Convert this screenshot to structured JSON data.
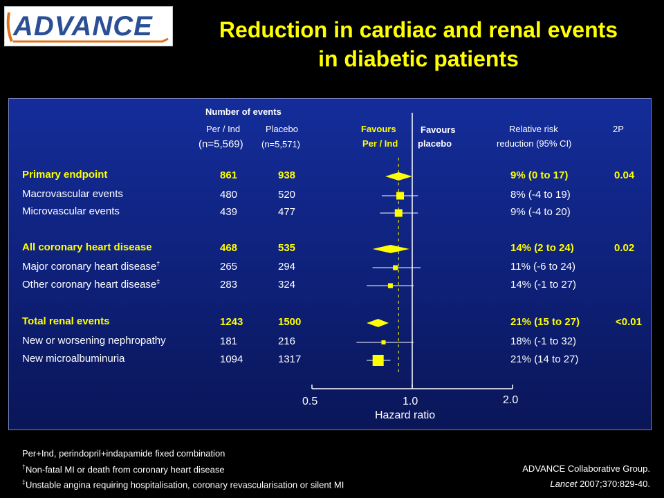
{
  "logo": {
    "text": "ADVANCE"
  },
  "title": {
    "line1": "Reduction in cardiac and renal events",
    "line2": "in diabetic patients"
  },
  "headers": {
    "number_of_events": "Number  of  events",
    "col_active": "Per / Ind",
    "col_placebo": "Placebo",
    "n_active": "(n=5,569)",
    "n_placebo": "(n=5,571)",
    "favours_active_1": "Favours",
    "favours_active_2": "Per / Ind",
    "favours_placebo_1": "Favours",
    "favours_placebo_2": "placebo",
    "rrr_1": "Relative risk",
    "rrr_2": "reduction (95%  CI)",
    "p_col": "2P"
  },
  "chart_data": {
    "type": "forest",
    "x_axis_label": "Hazard ratio",
    "x_scale": "log",
    "x_ticks": [
      0.5,
      1.0,
      2.0
    ],
    "x_tick_labels": [
      "0.5",
      "1.0",
      "2.0"
    ],
    "reference_line": 1.0,
    "rows": [
      {
        "label": "Primary endpoint",
        "sup": "",
        "active": "861",
        "placebo": "938",
        "hr": 0.91,
        "lo": 0.83,
        "hi": 1.0,
        "rrr": "9% (0 to 17)",
        "p": "0.04",
        "summary": true,
        "marker": "diamond"
      },
      {
        "label": "Macrovascular events",
        "sup": "",
        "active": "480",
        "placebo": "520",
        "hr": 0.92,
        "lo": 0.81,
        "hi": 1.04,
        "rrr": "8% (-4 to 19)",
        "p": "",
        "summary": false,
        "marker": "square"
      },
      {
        "label": "Microvascular events",
        "sup": "",
        "active": "439",
        "placebo": "477",
        "hr": 0.91,
        "lo": 0.8,
        "hi": 1.04,
        "rrr": "9% (-4 to 20)",
        "p": "",
        "summary": false,
        "marker": "square"
      },
      {
        "label": "All coronary heart disease",
        "sup": "",
        "active": "468",
        "placebo": "535",
        "hr": 0.86,
        "lo": 0.76,
        "hi": 0.98,
        "rrr": "14% (2 to 24)",
        "p": "0.02",
        "summary": true,
        "marker": "diamond"
      },
      {
        "label": "Major coronary heart disease",
        "sup": "†",
        "active": "265",
        "placebo": "294",
        "hr": 0.89,
        "lo": 0.76,
        "hi": 1.06,
        "rrr": "11% (-6 to 24)",
        "p": "",
        "summary": false,
        "marker": "square"
      },
      {
        "label": "Other coronary heart disease",
        "sup": "‡",
        "active": "283",
        "placebo": "324",
        "hr": 0.86,
        "lo": 0.73,
        "hi": 1.01,
        "rrr": "14% (-1 to 27)",
        "p": "",
        "summary": false,
        "marker": "square"
      },
      {
        "label": "Total renal events",
        "sup": "",
        "active": "1243",
        "placebo": "1500",
        "hr": 0.79,
        "lo": 0.73,
        "hi": 0.85,
        "rrr": "21% (15 to 27)",
        "p": "<0.01",
        "summary": true,
        "marker": "diamond"
      },
      {
        "label": "New or worsening nephropathy",
        "sup": "",
        "active": "181",
        "placebo": "216",
        "hr": 0.82,
        "lo": 0.68,
        "hi": 1.01,
        "rrr": "18% (-1 to 32)",
        "p": "",
        "summary": false,
        "marker": "square"
      },
      {
        "label": "New microalbuminuria",
        "sup": "",
        "active": "1094",
        "placebo": "1317",
        "hr": 0.79,
        "lo": 0.73,
        "hi": 0.86,
        "rrr": "21% (14 to 27)",
        "p": "",
        "summary": false,
        "marker": "square"
      }
    ]
  },
  "footnotes": {
    "line1": "Per+Ind, perindopril+indapamide fixed combination",
    "line2_sup": "†",
    "line2": "Non-fatal MI or death from coronary heart disease",
    "line3_sup": "‡",
    "line3": "Unstable angina requiring hospitalisation, coronary revascularisation or silent MI"
  },
  "citation": {
    "line1": "ADVANCE Collaborative Group.",
    "line2_journal": "Lancet",
    "line2_ref": "2007;370:829-40."
  },
  "colors": {
    "accent": "#ffff00",
    "background": "#000000",
    "panel": "#142d9a",
    "text": "#ffffff"
  }
}
